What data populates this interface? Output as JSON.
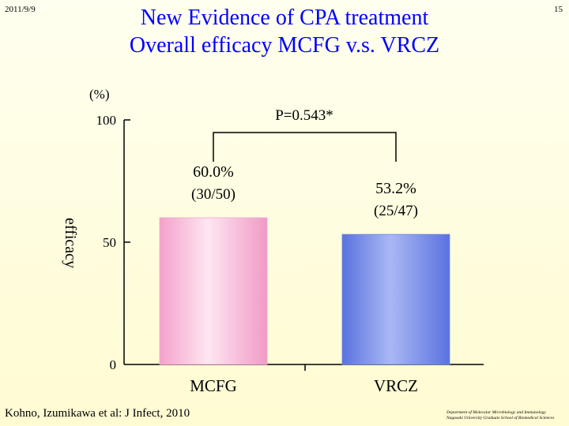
{
  "header": {
    "date": "2011/9/9",
    "page_number": "15",
    "title_line1": "New Evidence of CPA treatment",
    "title_line2": "Overall efficacy MCFG v.s. VRCZ"
  },
  "footer": {
    "citation": "Kohno, Izumikawa et al: J Infect, 2010",
    "department_line1": "Department of Molecular Microbiology and Immunology",
    "department_line2": "Nagasaki University Graduate School of Biomedical Sciences"
  },
  "chart_data": {
    "type": "bar",
    "unit_label": "(%)",
    "ylabel": "efficacy",
    "ylim": [
      0,
      100
    ],
    "yticks": [
      "0",
      "50",
      "100"
    ],
    "categories": [
      "MCFG",
      "VRCZ"
    ],
    "values": [
      60.0,
      53.2
    ],
    "value_labels": [
      "60.0%",
      "53.2%"
    ],
    "count_labels": [
      "(30/50)",
      "(25/47)"
    ],
    "bar_colors": [
      "#f6a6ce",
      "#6e86e4"
    ],
    "p_value_label": "P=0.543*"
  }
}
